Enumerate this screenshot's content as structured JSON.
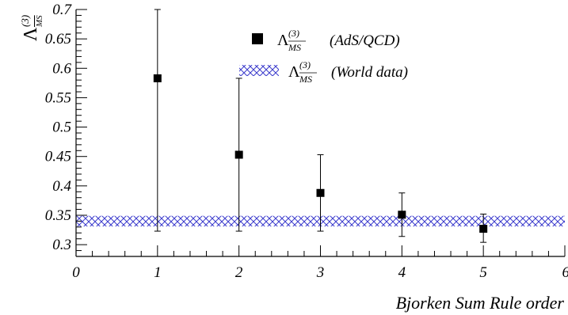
{
  "chart_data": {
    "type": "scatter",
    "xlabel": "Bjorken Sum Rule order",
    "ylabel": {
      "symbol": "Λ",
      "superscript": "(3)",
      "subscript": "MS"
    },
    "xlim": [
      0,
      6
    ],
    "ylim": [
      0.28,
      0.7
    ],
    "x_ticks": [
      "0",
      "1",
      "2",
      "3",
      "4",
      "5",
      "6"
    ],
    "y_ticks": [
      "0.3",
      "0.35",
      "0.4",
      "0.45",
      "0.5",
      "0.55",
      "0.6",
      "0.65",
      "0.7"
    ],
    "series": [
      {
        "name": "Λ(3)MS (AdS/QCD)",
        "label_symbol": "Λ",
        "label_superscript": "(3)",
        "label_subscript": "MS",
        "label_suffix": "(AdS/QCD)",
        "marker": "filled-square",
        "color": "#000000",
        "points": [
          {
            "x": 1,
            "y": 0.583,
            "err_low": 0.323,
            "err_high": 0.7
          },
          {
            "x": 2,
            "y": 0.453,
            "err_low": 0.323,
            "err_high": 0.583
          },
          {
            "x": 3,
            "y": 0.388,
            "err_low": 0.323,
            "err_high": 0.453
          },
          {
            "x": 4,
            "y": 0.351,
            "err_low": 0.314,
            "err_high": 0.388
          },
          {
            "x": 5,
            "y": 0.327,
            "err_low": 0.304,
            "err_high": 0.352
          }
        ]
      },
      {
        "name": "Λ(3)MS (World data)",
        "label_symbol": "Λ",
        "label_superscript": "(3)",
        "label_subscript": "MS",
        "label_suffix": "(World data)",
        "type": "band",
        "color": "#3a3acc",
        "y_low": 0.331,
        "y_high": 0.349
      }
    ],
    "legend_placement": "top-center",
    "grid": false
  }
}
